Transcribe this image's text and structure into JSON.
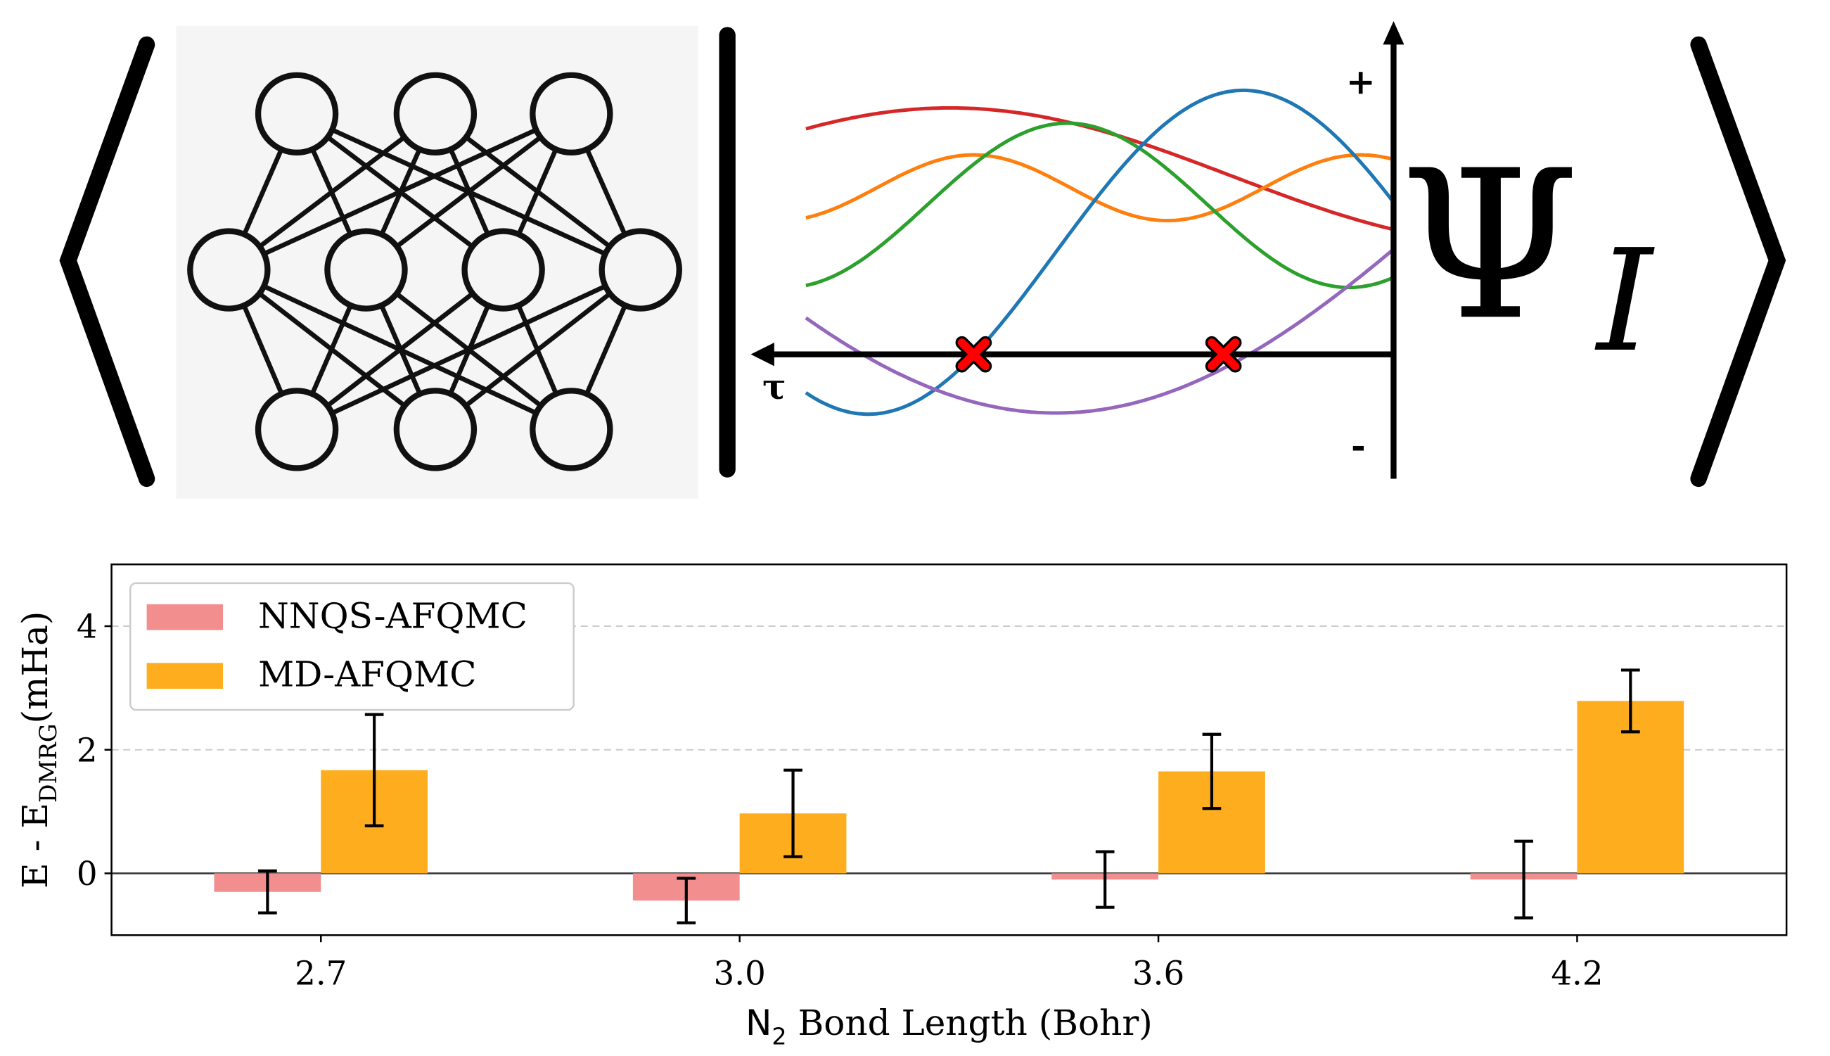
{
  "diagram": {
    "plus": "+",
    "minus": "-",
    "tau": "τ",
    "psi": "Ψ",
    "index": "I"
  },
  "chart_data": {
    "type": "bar",
    "categories": [
      "2.7",
      "3.0",
      "3.6",
      "4.2"
    ],
    "series": [
      {
        "name": "NNQS-AFQMC",
        "color": "#f28e8e",
        "values": [
          -0.3,
          -0.44,
          -0.1,
          -0.1
        ],
        "errors": [
          0.34,
          0.36,
          0.45,
          0.62
        ]
      },
      {
        "name": "MD-AFQMC",
        "color": "#fdad1e",
        "values": [
          1.67,
          0.97,
          1.65,
          2.79
        ],
        "errors": [
          0.9,
          0.7,
          0.6,
          0.5
        ]
      }
    ],
    "ylim": [
      -1,
      5
    ],
    "yticks": [
      0,
      2,
      4
    ],
    "grid": true,
    "legend": "upper left",
    "y_label": {
      "main": "E - E",
      "sub": "DMRG",
      "unit": "(mHa)"
    },
    "x_label": {
      "main": "N",
      "sub": "2",
      "rest": " Bond Length (Bohr)"
    }
  }
}
